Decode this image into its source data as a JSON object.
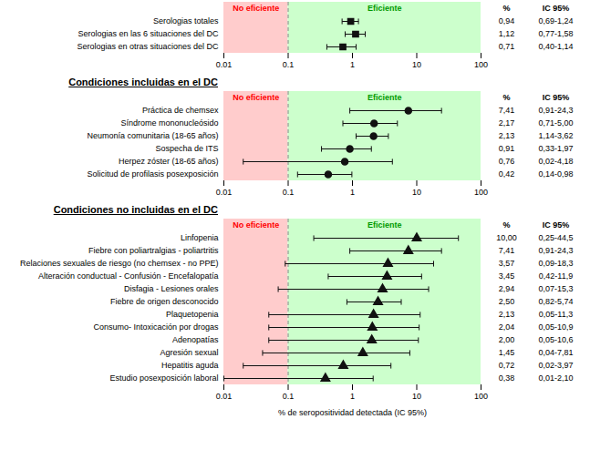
{
  "chart_data": [
    {
      "type": "forest",
      "categories": [
        "Serologias totales",
        "Serologias en las 6 situaciones del DC",
        "Serologias en otras situaciones del DC"
      ],
      "values": [
        0.94,
        1.12,
        0.71
      ],
      "ci_low": [
        0.69,
        0.77,
        0.4
      ],
      "ci_high": [
        1.24,
        1.58,
        1.14
      ],
      "value_labels": [
        "0,94",
        "1,12",
        "0,71"
      ],
      "ci_labels": [
        "0,69-1,24",
        "0,77-1,58",
        "0,40-1,14"
      ],
      "column_headers": [
        "%",
        "IC 95%"
      ],
      "marker": "square",
      "color": "#111111",
      "log": "x",
      "xlim": [
        0.01,
        100
      ],
      "xticks": [
        0.01,
        0.1,
        1,
        10,
        100
      ],
      "threshold": 0.1,
      "regions": [
        {
          "label": "No eficiente",
          "label_color": "#ff0000",
          "color": "#ffcccc"
        },
        {
          "label": "Eficiente",
          "label_color": "#009900",
          "color": "#ccffcc"
        }
      ]
    },
    {
      "type": "forest",
      "title": "Condiciones incluidas en el DC",
      "categories": [
        "Práctica de chemsex",
        "Síndrome mononucleósido",
        "Neumonía comunitaria (18-65 años)",
        "Sospecha de ITS",
        "Herpez zóster (18-65 años)",
        "Solicitud de profilasis posexposición"
      ],
      "values": [
        7.41,
        2.17,
        2.13,
        0.91,
        0.76,
        0.42
      ],
      "ci_low": [
        0.91,
        0.71,
        1.14,
        0.33,
        0.02,
        0.14
      ],
      "ci_high": [
        24.3,
        5.0,
        3.62,
        1.97,
        4.18,
        0.98
      ],
      "value_labels": [
        "7,41",
        "2,17",
        "2,13",
        "0,91",
        "0,76",
        "0,42"
      ],
      "ci_labels": [
        "0,91-24,3",
        "0,71-5,00",
        "1,14-3,62",
        "0,33-1,97",
        "0,02-4,18",
        "0,14-0,98"
      ],
      "column_headers": [
        "%",
        "IC 95%"
      ],
      "marker": "circle",
      "color": "#111111",
      "log": "x",
      "xlim": [
        0.01,
        100
      ],
      "xticks": [
        0.01,
        0.1,
        1,
        10,
        100
      ],
      "threshold": 0.1,
      "regions": [
        {
          "label": "No eficiente",
          "label_color": "#ff0000",
          "color": "#ffcccc"
        },
        {
          "label": "Eficiente",
          "label_color": "#009900",
          "color": "#ccffcc"
        }
      ]
    },
    {
      "type": "forest",
      "title": "Condiciones no incluidas en el DC",
      "xlabel": "% de seropositividad detectada (IC 95%)",
      "categories": [
        "Linfopenia",
        "Fiebre con poliartralgias - poliartritis",
        "Relaciones sexuales de riesgo (no chemsex - no PPE)",
        "Alteración conductual - Confusión - Encefalopatía",
        "Disfagia - Lesiones orales",
        "Fiebre de origen desconocido",
        "Plaquetopenia",
        "Consumo- Intoxicación por drogas",
        "Adenopatías",
        "Agresión sexual",
        "Hepatitis aguda",
        "Estudio posexposición laboral"
      ],
      "values": [
        10.0,
        7.41,
        3.57,
        3.45,
        2.94,
        2.5,
        2.13,
        2.04,
        2.0,
        1.45,
        0.72,
        0.38
      ],
      "ci_low": [
        0.25,
        0.91,
        0.09,
        0.42,
        0.07,
        0.82,
        0.05,
        0.05,
        0.05,
        0.04,
        0.02,
        0.01
      ],
      "ci_high": [
        44.5,
        24.3,
        18.3,
        11.9,
        15.3,
        5.74,
        11.3,
        10.9,
        10.6,
        7.81,
        3.97,
        2.1
      ],
      "value_labels": [
        "10,00",
        "7,41",
        "3,57",
        "3,45",
        "2,94",
        "2,50",
        "2,13",
        "2,04",
        "2,00",
        "1,45",
        "0,72",
        "0,38"
      ],
      "ci_labels": [
        "0,25-44,5",
        "0,91-24,3",
        "0,09-18,3",
        "0,42-11,9",
        "0,07-15,3",
        "0,82-5,74",
        "0,05-11,3",
        "0,05-10,9",
        "0,05-10,6",
        "0,04-7,81",
        "0,02-3,97",
        "0,01-2,10"
      ],
      "column_headers": [
        "%",
        "IC 95%"
      ],
      "marker": "triangle",
      "color": "#111111",
      "log": "x",
      "xlim": [
        0.01,
        100
      ],
      "xticks": [
        0.01,
        0.1,
        1,
        10,
        100
      ],
      "threshold": 0.1,
      "regions": [
        {
          "label": "No eficiente",
          "label_color": "#ff0000",
          "color": "#ffcccc"
        },
        {
          "label": "Eficiente",
          "label_color": "#009900",
          "color": "#ccffcc"
        }
      ]
    }
  ]
}
